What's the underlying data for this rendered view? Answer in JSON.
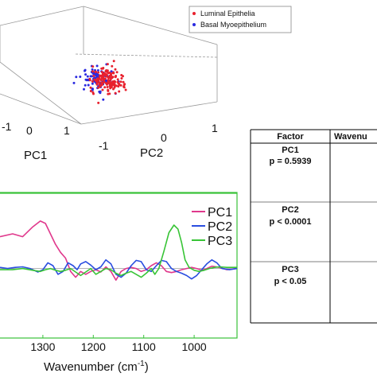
{
  "chart_data": [
    {
      "type": "scatter",
      "subtype": "3d-pca",
      "axis_labels": {
        "x": "PC1",
        "y": "PC2"
      },
      "x_ticks": [
        "-1",
        "0",
        "1"
      ],
      "y_ticks": [
        "-1",
        "0",
        "1"
      ],
      "legend_position": "top-right",
      "series": [
        {
          "name": "Luminal Epithelia",
          "color": "#e8212e",
          "center_pc1": 0.2,
          "center_pc2": 0.1,
          "spread": 0.35,
          "count": 150
        },
        {
          "name": "Basal Myoepithelium",
          "color": "#2a2ae0",
          "center_pc1": -0.1,
          "center_pc2": -0.1,
          "spread": 0.35,
          "count": 90
        }
      ]
    },
    {
      "type": "line",
      "xlabel": "Wavenumber (cm",
      "xlabel_sup": "-1",
      "xlabel_end": ")",
      "x_ticks": [
        "1300",
        "1200",
        "1100",
        "1000"
      ],
      "xlim": [
        1385,
        915
      ],
      "ylim": [
        -1.2,
        1.3
      ],
      "legend_position": "top-right",
      "series": [
        {
          "name": "PC1",
          "color": "#e0388c",
          "points": [
            [
              1385,
              0.55
            ],
            [
              1360,
              0.6
            ],
            [
              1340,
              0.55
            ],
            [
              1320,
              0.72
            ],
            [
              1305,
              0.82
            ],
            [
              1295,
              0.78
            ],
            [
              1285,
              0.6
            ],
            [
              1275,
              0.42
            ],
            [
              1265,
              0.28
            ],
            [
              1255,
              0.18
            ],
            [
              1245,
              -0.05
            ],
            [
              1235,
              -0.15
            ],
            [
              1225,
              -0.05
            ],
            [
              1215,
              -0.1
            ],
            [
              1205,
              -0.05
            ],
            [
              1195,
              -0.02
            ],
            [
              1185,
              -0.06
            ],
            [
              1175,
              0.03
            ],
            [
              1165,
              -0.05
            ],
            [
              1155,
              -0.2
            ],
            [
              1145,
              -0.05
            ],
            [
              1135,
              0.0
            ],
            [
              1125,
              0.02
            ],
            [
              1115,
              0.0
            ],
            [
              1105,
              -0.05
            ],
            [
              1095,
              -0.02
            ],
            [
              1085,
              0.05
            ],
            [
              1075,
              0.1
            ],
            [
              1065,
              0.05
            ],
            [
              1055,
              -0.05
            ],
            [
              1045,
              -0.07
            ],
            [
              1035,
              -0.05
            ],
            [
              1025,
              -0.02
            ],
            [
              1015,
              0.0
            ],
            [
              1005,
              0.02
            ],
            [
              995,
              0.0
            ],
            [
              985,
              -0.03
            ],
            [
              975,
              0.0
            ],
            [
              965,
              0.04
            ],
            [
              950,
              0.02
            ],
            [
              935,
              -0.02
            ],
            [
              915,
              0.0
            ]
          ]
        },
        {
          "name": "PC2",
          "color": "#2a4ee0",
          "points": [
            [
              1385,
              0.02
            ],
            [
              1370,
              0.0
            ],
            [
              1355,
              0.02
            ],
            [
              1340,
              0.03
            ],
            [
              1325,
              0.0
            ],
            [
              1310,
              -0.06
            ],
            [
              1300,
              -0.02
            ],
            [
              1290,
              0.1
            ],
            [
              1280,
              0.05
            ],
            [
              1270,
              -0.1
            ],
            [
              1260,
              -0.05
            ],
            [
              1250,
              0.1
            ],
            [
              1240,
              0.05
            ],
            [
              1232,
              -0.02
            ],
            [
              1225,
              0.08
            ],
            [
              1215,
              0.12
            ],
            [
              1205,
              0.06
            ],
            [
              1195,
              -0.02
            ],
            [
              1185,
              0.03
            ],
            [
              1175,
              0.15
            ],
            [
              1165,
              0.08
            ],
            [
              1155,
              -0.1
            ],
            [
              1145,
              -0.15
            ],
            [
              1135,
              -0.08
            ],
            [
              1125,
              0.05
            ],
            [
              1115,
              0.14
            ],
            [
              1105,
              0.12
            ],
            [
              1095,
              -0.02
            ],
            [
              1085,
              -0.05
            ],
            [
              1075,
              0.05
            ],
            [
              1065,
              0.14
            ],
            [
              1055,
              0.12
            ],
            [
              1045,
              0.0
            ],
            [
              1035,
              -0.05
            ],
            [
              1025,
              -0.08
            ],
            [
              1015,
              -0.12
            ],
            [
              1005,
              -0.18
            ],
            [
              995,
              -0.12
            ],
            [
              985,
              -0.02
            ],
            [
              975,
              0.08
            ],
            [
              965,
              0.15
            ],
            [
              955,
              0.1
            ],
            [
              945,
              0.0
            ],
            [
              930,
              -0.02
            ],
            [
              915,
              0.0
            ]
          ]
        },
        {
          "name": "PC3",
          "color": "#38c436",
          "points": [
            [
              1385,
              -0.02
            ],
            [
              1360,
              -0.02
            ],
            [
              1340,
              0.0
            ],
            [
              1320,
              -0.03
            ],
            [
              1305,
              -0.05
            ],
            [
              1295,
              -0.02
            ],
            [
              1285,
              0.0
            ],
            [
              1275,
              -0.03
            ],
            [
              1265,
              -0.05
            ],
            [
              1255,
              -0.03
            ],
            [
              1245,
              0.0
            ],
            [
              1235,
              -0.06
            ],
            [
              1225,
              -0.12
            ],
            [
              1215,
              -0.06
            ],
            [
              1205,
              0.0
            ],
            [
              1195,
              -0.1
            ],
            [
              1185,
              -0.05
            ],
            [
              1175,
              0.0
            ],
            [
              1165,
              -0.02
            ],
            [
              1155,
              -0.08
            ],
            [
              1145,
              -0.12
            ],
            [
              1135,
              -0.08
            ],
            [
              1125,
              -0.05
            ],
            [
              1115,
              -0.1
            ],
            [
              1105,
              -0.15
            ],
            [
              1095,
              -0.08
            ],
            [
              1085,
              0.0
            ],
            [
              1078,
              -0.1
            ],
            [
              1070,
              0.0
            ],
            [
              1060,
              0.3
            ],
            [
              1050,
              0.62
            ],
            [
              1040,
              0.75
            ],
            [
              1032,
              0.68
            ],
            [
              1025,
              0.45
            ],
            [
              1018,
              0.15
            ],
            [
              1010,
              0.02
            ],
            [
              1000,
              -0.03
            ],
            [
              990,
              -0.05
            ],
            [
              980,
              -0.03
            ],
            [
              970,
              0.0
            ],
            [
              960,
              0.02
            ],
            [
              950,
              0.03
            ],
            [
              935,
              0.02
            ],
            [
              915,
              0.02
            ]
          ]
        }
      ]
    },
    {
      "type": "table",
      "headers": [
        "Factor",
        "Wavenu"
      ],
      "rows": [
        {
          "factor": "PC1",
          "p": "p = 0.5939"
        },
        {
          "factor": "PC2",
          "p": "p < 0.0001"
        },
        {
          "factor": "PC3",
          "p": "p < 0.05"
        }
      ]
    }
  ]
}
